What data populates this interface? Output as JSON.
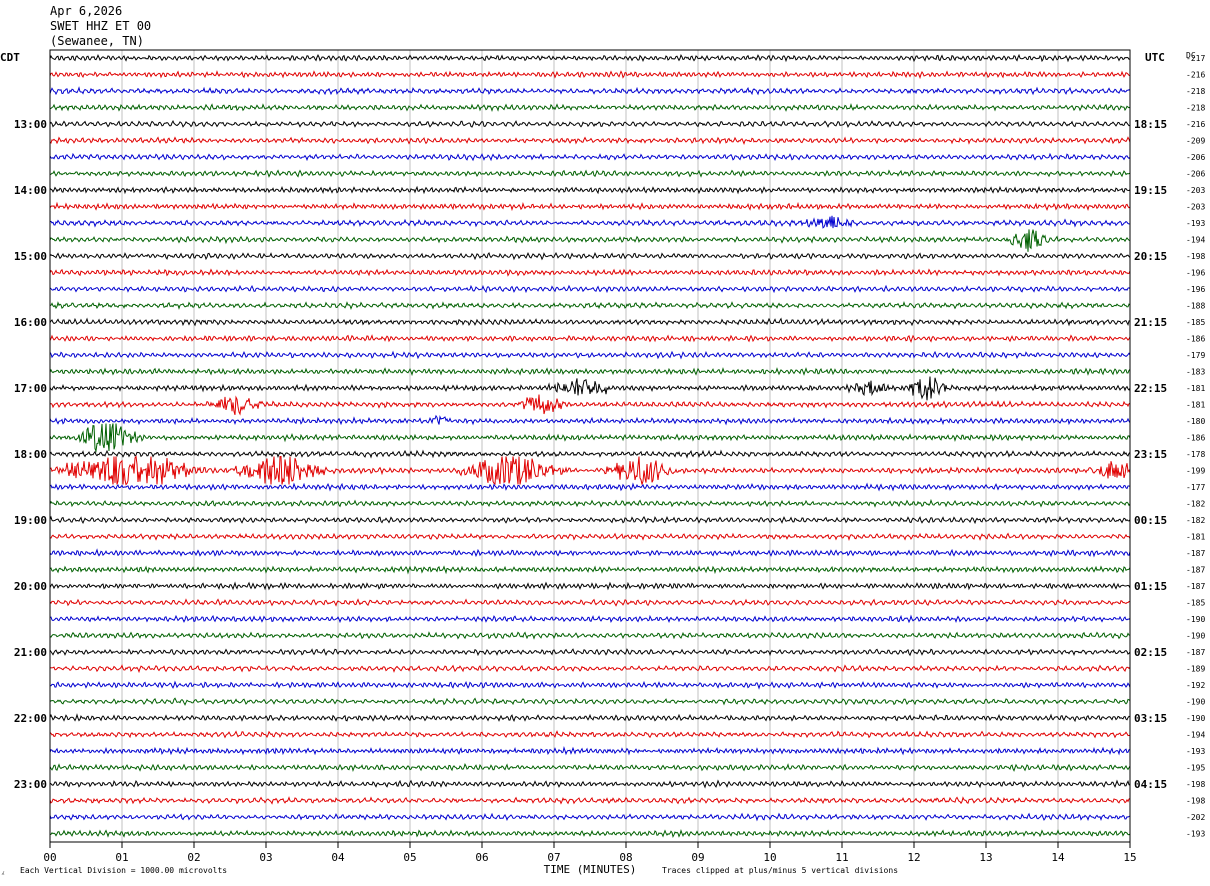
{
  "header": {
    "date": "Apr 6,2026",
    "station": "SWET HHZ ET 00",
    "location": "(Sewanee, TN)"
  },
  "footer": {
    "marker": "⁁",
    "scale_note": "Each Vertical Division = 1000.00 microvolts",
    "clip_note": "Traces clipped at plus/minus 5 vertical divisions"
  },
  "chart_data": {
    "type": "helicorder",
    "xlabel": "TIME (MINUTES)",
    "x_ticks": [
      "00",
      "01",
      "02",
      "03",
      "04",
      "05",
      "06",
      "07",
      "08",
      "09",
      "10",
      "11",
      "12",
      "13",
      "14",
      "15"
    ],
    "xlim": [
      0,
      15
    ],
    "left_axis_label": "CDT",
    "right_axis_label": "UTC",
    "dc_label": "DC",
    "left_hour_labels": [
      "13:00",
      "14:00",
      "15:00",
      "16:00",
      "17:00",
      "18:00",
      "19:00",
      "20:00",
      "21:00",
      "22:00",
      "23:00"
    ],
    "right_hour_labels": [
      "18:15",
      "19:15",
      "20:15",
      "21:15",
      "22:15",
      "23:15",
      "00:15",
      "01:15",
      "02:15",
      "03:15",
      "04:15"
    ],
    "rows_per_hour": 4,
    "row_minutes": 15,
    "first_labeled_row": 4,
    "trace_colors": [
      "#000000",
      "#e00000",
      "#0000d0",
      "#006000"
    ],
    "grid": true,
    "dc_offsets": [
      -217,
      -216,
      -218,
      -218,
      -216,
      -209,
      -206,
      -206,
      -203,
      -203,
      -193,
      -194,
      -198,
      -196,
      -196,
      -188,
      -185,
      -186,
      -179,
      -183,
      -181,
      -181,
      -180,
      -186,
      -178,
      -199,
      -177,
      -182,
      -182,
      -181,
      -187,
      -187,
      -187,
      -185,
      -190,
      -190,
      -187,
      -189,
      -192,
      -190,
      -190,
      -194,
      -193,
      -195,
      -198,
      -198,
      -202,
      -193
    ],
    "events": [
      {
        "row": 10,
        "minute": 10.8,
        "amp": 1.2,
        "dur": 0.5
      },
      {
        "row": 11,
        "minute": 13.6,
        "amp": 2.2,
        "dur": 0.35
      },
      {
        "row": 20,
        "minute": 7.4,
        "amp": 1.5,
        "dur": 0.6
      },
      {
        "row": 20,
        "minute": 11.4,
        "amp": 1.0,
        "dur": 0.4
      },
      {
        "row": 20,
        "minute": 12.2,
        "amp": 2.0,
        "dur": 0.4
      },
      {
        "row": 21,
        "minute": 2.6,
        "amp": 1.6,
        "dur": 0.5
      },
      {
        "row": 21,
        "minute": 6.8,
        "amp": 1.6,
        "dur": 0.5
      },
      {
        "row": 22,
        "minute": 5.4,
        "amp": 1.0,
        "dur": 0.2
      },
      {
        "row": 23,
        "minute": 0.8,
        "amp": 3.2,
        "dur": 0.5
      },
      {
        "row": 25,
        "minute": 0.9,
        "amp": 2.6,
        "dur": 1.0
      },
      {
        "row": 25,
        "minute": 1.5,
        "amp": 1.8,
        "dur": 0.8
      },
      {
        "row": 25,
        "minute": 3.2,
        "amp": 3.0,
        "dur": 0.8
      },
      {
        "row": 25,
        "minute": 6.4,
        "amp": 2.8,
        "dur": 0.9
      },
      {
        "row": 25,
        "minute": 8.2,
        "amp": 2.4,
        "dur": 0.6
      },
      {
        "row": 25,
        "minute": 14.8,
        "amp": 1.6,
        "dur": 0.5
      }
    ]
  }
}
